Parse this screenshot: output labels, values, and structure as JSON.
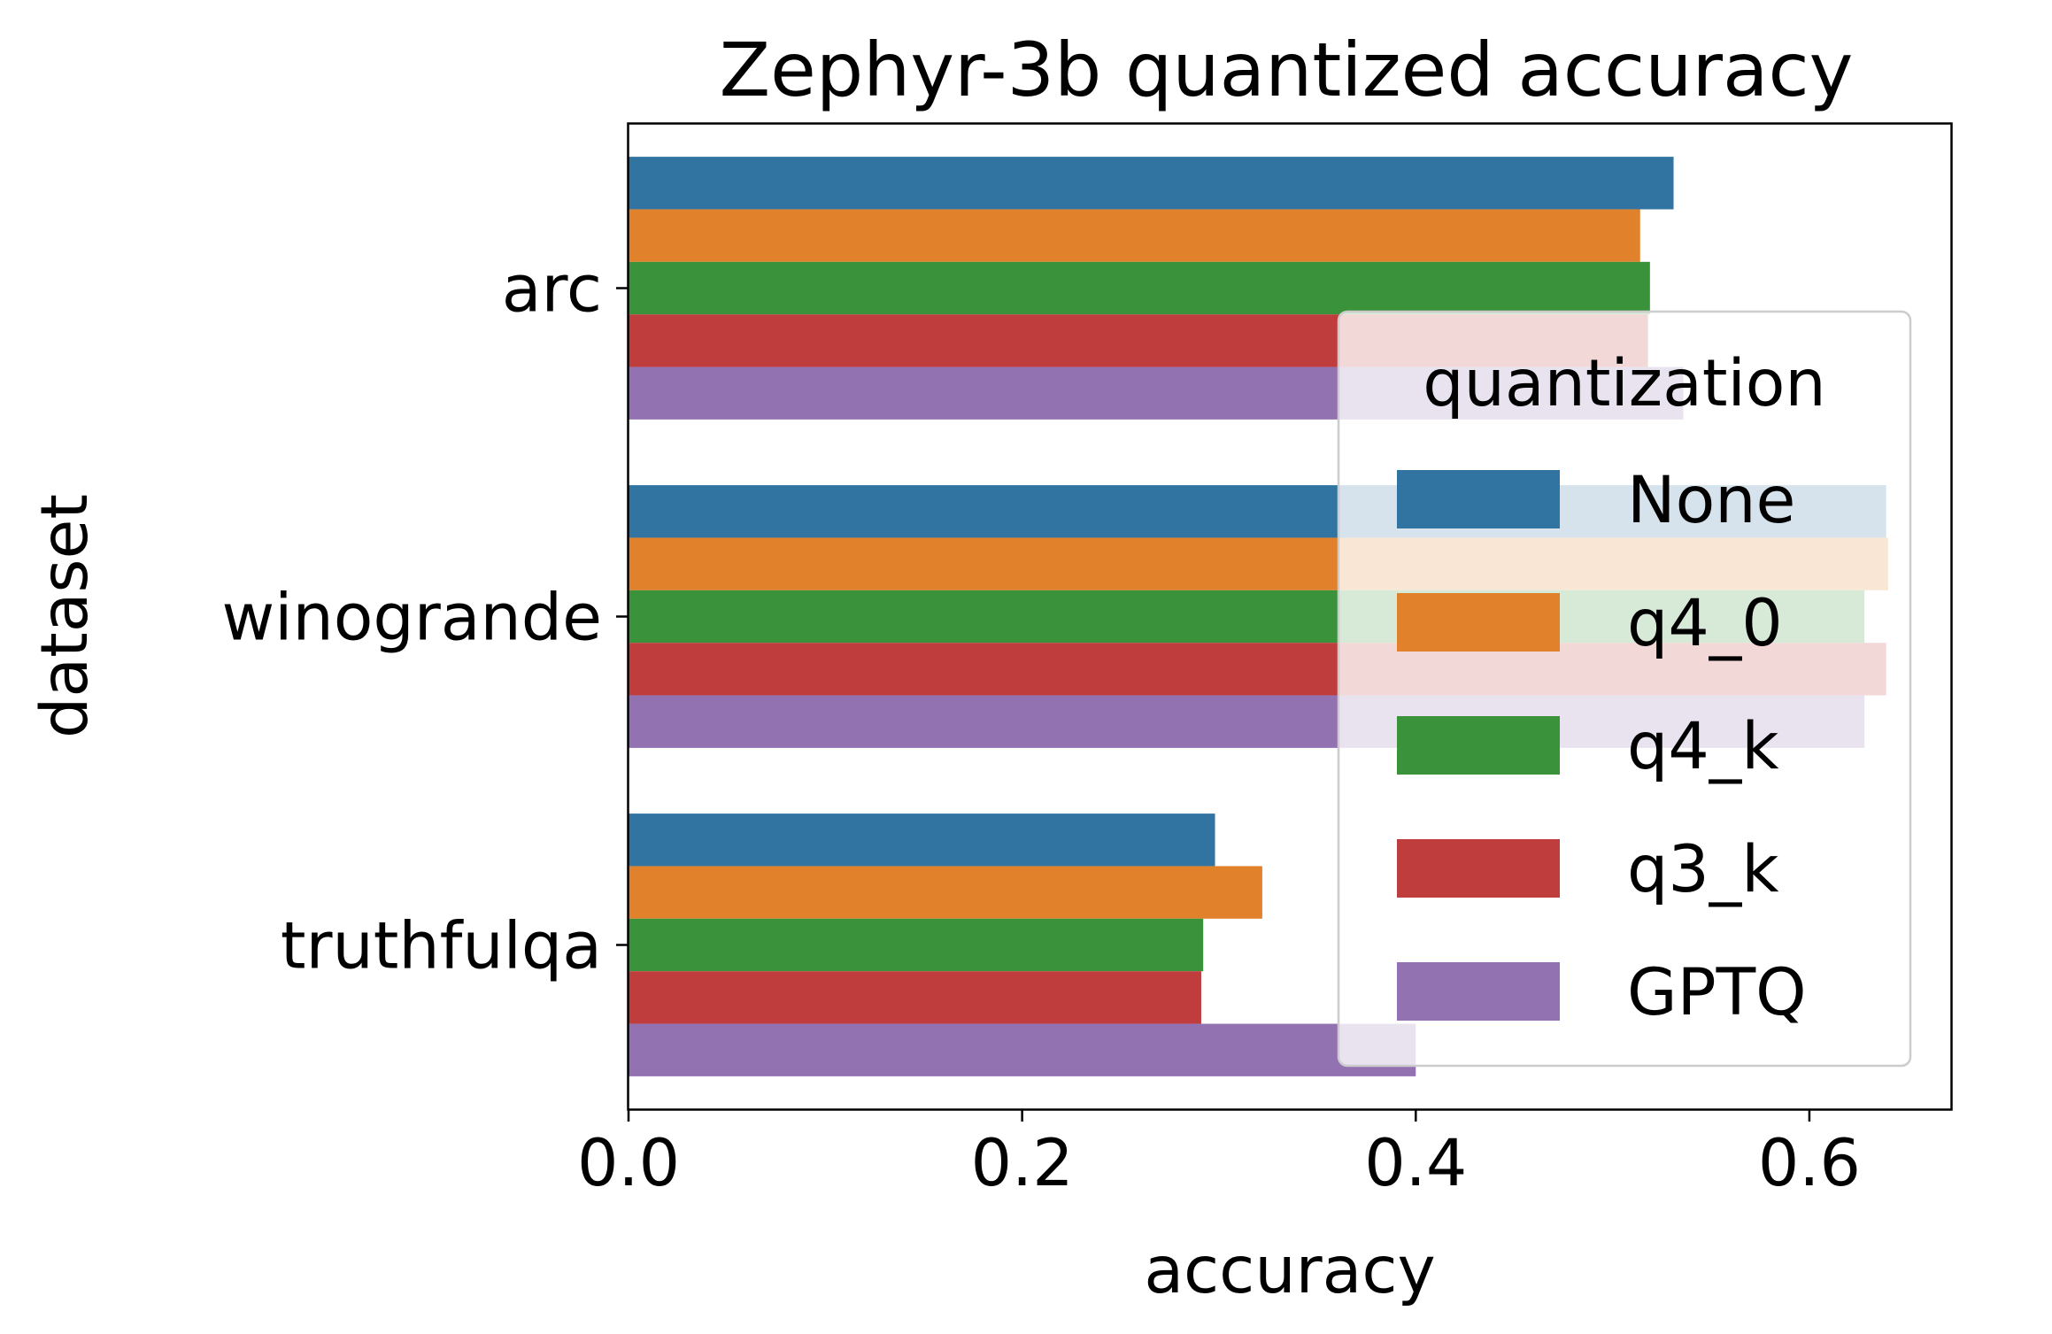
{
  "chart_data": {
    "type": "bar",
    "orientation": "horizontal",
    "title": "Zephyr-3b quantized accuracy",
    "xlabel": "accuracy",
    "ylabel": "dataset",
    "categories": [
      "arc",
      "winogrande",
      "truthfulqa"
    ],
    "xlim": [
      0.0,
      0.672
    ],
    "xticks": [
      0.0,
      0.2,
      0.4,
      0.6
    ],
    "xtick_labels": [
      "0.0",
      "0.2",
      "0.4",
      "0.6"
    ],
    "grid": false,
    "legend": {
      "title": "quantization",
      "placement": "right"
    },
    "series": [
      {
        "name": "None",
        "color": "#3274a1",
        "values": [
          0.531,
          0.639,
          0.298
        ]
      },
      {
        "name": "q4_0",
        "color": "#e1812c",
        "values": [
          0.514,
          0.64,
          0.322
        ]
      },
      {
        "name": "q4_k",
        "color": "#3a923a",
        "values": [
          0.519,
          0.628,
          0.292
        ]
      },
      {
        "name": "q3_k",
        "color": "#c03d3e",
        "values": [
          0.518,
          0.639,
          0.291
        ]
      },
      {
        "name": "GPTQ",
        "color": "#9372b2",
        "values": [
          0.536,
          0.628,
          0.4
        ]
      }
    ]
  }
}
